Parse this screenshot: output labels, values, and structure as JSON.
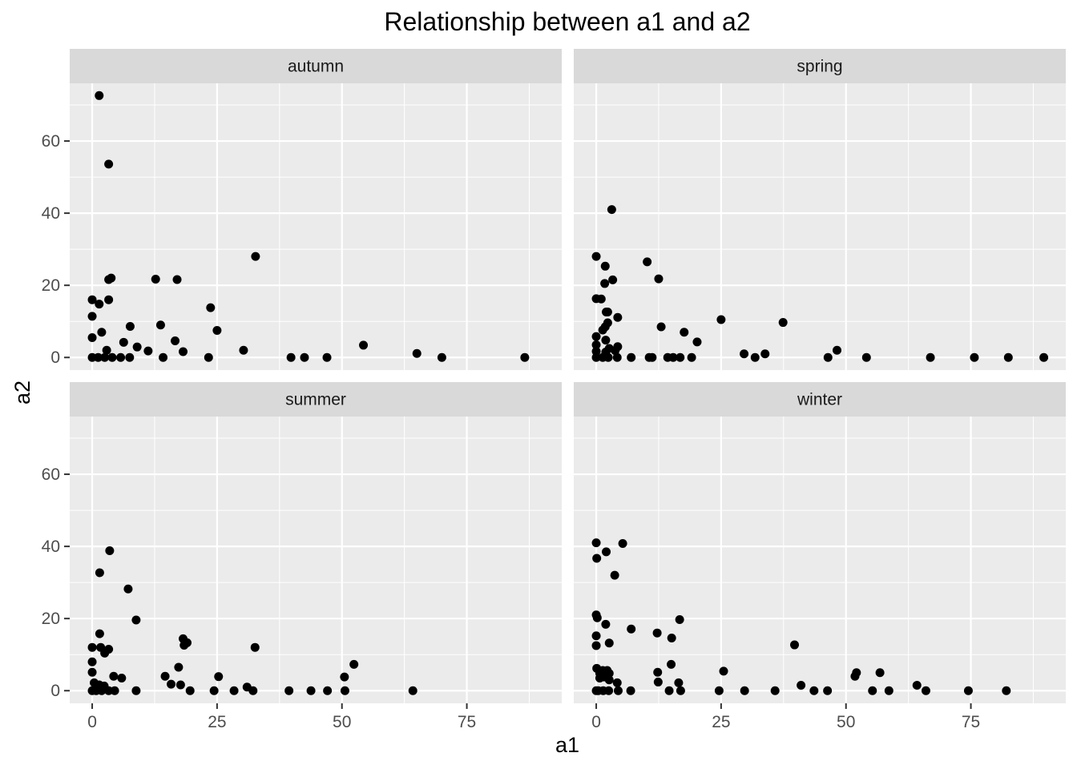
{
  "chart_data": {
    "type": "scatter",
    "title": "Relationship between a1 and a2",
    "xlabel": "a1",
    "ylabel": "a2",
    "xlim": [
      -4.5,
      94
    ],
    "ylim": [
      -3.5,
      76
    ],
    "x_ticks": [
      0,
      25,
      50,
      75
    ],
    "y_ticks": [
      0,
      20,
      40,
      60
    ],
    "grid": true,
    "facets": [
      {
        "label": "autumn",
        "points": [
          [
            1.4,
            72.6
          ],
          [
            3.3,
            53.6
          ],
          [
            32.7,
            28
          ],
          [
            3.3,
            21.6
          ],
          [
            3.8,
            22
          ],
          [
            12.7,
            21.7
          ],
          [
            17,
            21.6
          ],
          [
            0,
            16
          ],
          [
            3.3,
            16
          ],
          [
            1.4,
            14.8
          ],
          [
            23.7,
            13.8
          ],
          [
            0,
            11.4
          ],
          [
            13.7,
            9
          ],
          [
            7.6,
            8.6
          ],
          [
            25,
            7.5
          ],
          [
            1.9,
            7
          ],
          [
            0,
            5.5
          ],
          [
            16.6,
            4.6
          ],
          [
            6.3,
            4.2
          ],
          [
            54.3,
            3.4
          ],
          [
            9,
            2.9
          ],
          [
            2.9,
            2
          ],
          [
            11.2,
            1.8
          ],
          [
            30.3,
            2
          ],
          [
            18.2,
            1.6
          ],
          [
            65,
            1.1
          ],
          [
            0,
            0
          ],
          [
            1.2,
            0
          ],
          [
            2.5,
            0
          ],
          [
            4,
            0
          ],
          [
            5.7,
            0
          ],
          [
            7.5,
            0
          ],
          [
            14.2,
            0
          ],
          [
            23.3,
            0
          ],
          [
            39.8,
            0
          ],
          [
            42.5,
            0
          ],
          [
            47,
            0
          ],
          [
            70,
            0
          ],
          [
            86.6,
            0
          ]
        ]
      },
      {
        "label": "spring",
        "points": [
          [
            3.1,
            41
          ],
          [
            0,
            28
          ],
          [
            10.2,
            26.5
          ],
          [
            1.8,
            25.3
          ],
          [
            3.3,
            21.5
          ],
          [
            12.5,
            21.8
          ],
          [
            1.7,
            20.5
          ],
          [
            0,
            16.3
          ],
          [
            1,
            16.2
          ],
          [
            2,
            12.6
          ],
          [
            2.3,
            12.6
          ],
          [
            4.3,
            11.1
          ],
          [
            25,
            10.5
          ],
          [
            37.4,
            9.7
          ],
          [
            2.3,
            9.6
          ],
          [
            1.8,
            8.5
          ],
          [
            13,
            8.5
          ],
          [
            1.3,
            7.6
          ],
          [
            17.6,
            7
          ],
          [
            0,
            5.8
          ],
          [
            1.9,
            4.8
          ],
          [
            20.2,
            4.3
          ],
          [
            0,
            3.5
          ],
          [
            4.3,
            3
          ],
          [
            2.6,
            2.5
          ],
          [
            0,
            1.7
          ],
          [
            1.9,
            1.5
          ],
          [
            3.8,
            1.9
          ],
          [
            48.2,
            2
          ],
          [
            29.6,
            1
          ],
          [
            33.8,
            1
          ],
          [
            0,
            0
          ],
          [
            1.3,
            0
          ],
          [
            2.4,
            0
          ],
          [
            4.2,
            0
          ],
          [
            7,
            0
          ],
          [
            10.6,
            0
          ],
          [
            11.2,
            0
          ],
          [
            14.3,
            0
          ],
          [
            15.4,
            0
          ],
          [
            16.8,
            0
          ],
          [
            19.1,
            0
          ],
          [
            31.8,
            0
          ],
          [
            46.4,
            0
          ],
          [
            54.1,
            0
          ],
          [
            66.9,
            0
          ],
          [
            75.7,
            0
          ],
          [
            82.5,
            0
          ],
          [
            89.6,
            0
          ]
        ]
      },
      {
        "label": "summer",
        "points": [
          [
            3.5,
            38.8
          ],
          [
            1.5,
            32.7
          ],
          [
            7.2,
            28.2
          ],
          [
            8.8,
            19.6
          ],
          [
            1.5,
            15.8
          ],
          [
            18.2,
            14.4
          ],
          [
            18.4,
            12.6
          ],
          [
            19,
            13.3
          ],
          [
            0,
            12
          ],
          [
            1.7,
            12
          ],
          [
            3.3,
            11.5
          ],
          [
            32.6,
            12
          ],
          [
            2.5,
            10.4
          ],
          [
            0,
            8
          ],
          [
            52.4,
            7.3
          ],
          [
            17.3,
            6.5
          ],
          [
            0,
            5.1
          ],
          [
            14.6,
            4
          ],
          [
            25.3,
            3.9
          ],
          [
            4.3,
            4
          ],
          [
            5.9,
            3.5
          ],
          [
            50.5,
            3.8
          ],
          [
            15.8,
            1.8
          ],
          [
            0.4,
            2.2
          ],
          [
            1.4,
            1.6
          ],
          [
            2.4,
            1.3
          ],
          [
            17.7,
            1.6
          ],
          [
            31,
            1
          ],
          [
            0,
            0
          ],
          [
            0.8,
            0
          ],
          [
            1.9,
            0
          ],
          [
            3.3,
            0
          ],
          [
            4.5,
            0
          ],
          [
            8.8,
            0
          ],
          [
            19.6,
            0
          ],
          [
            24.4,
            0
          ],
          [
            28.4,
            0
          ],
          [
            32.2,
            0
          ],
          [
            39.4,
            0
          ],
          [
            43.8,
            0
          ],
          [
            47.1,
            0
          ],
          [
            50.6,
            0
          ],
          [
            64.2,
            0
          ]
        ]
      },
      {
        "label": "winter",
        "points": [
          [
            0,
            41
          ],
          [
            5.3,
            40.8
          ],
          [
            2,
            38.5
          ],
          [
            0.1,
            36.7
          ],
          [
            3.7,
            32
          ],
          [
            0,
            21
          ],
          [
            0.2,
            20.2
          ],
          [
            16.7,
            19.7
          ],
          [
            1.9,
            18.4
          ],
          [
            7,
            17.1
          ],
          [
            12.2,
            16
          ],
          [
            15.1,
            14.6
          ],
          [
            0,
            15.2
          ],
          [
            2.6,
            13.2
          ],
          [
            39.7,
            12.7
          ],
          [
            0,
            12.5
          ],
          [
            15,
            7.3
          ],
          [
            0.1,
            6.2
          ],
          [
            1.3,
            5.6
          ],
          [
            2.2,
            5.6
          ],
          [
            25.5,
            5.4
          ],
          [
            52.1,
            5
          ],
          [
            56.8,
            5
          ],
          [
            12.3,
            5.1
          ],
          [
            2.6,
            4.8
          ],
          [
            51.8,
            4
          ],
          [
            0.7,
            4.8
          ],
          [
            1.5,
            3.8
          ],
          [
            0.7,
            3.5
          ],
          [
            2.6,
            3
          ],
          [
            4.2,
            2.2
          ],
          [
            12.4,
            2.4
          ],
          [
            16.5,
            2.2
          ],
          [
            41,
            1.5
          ],
          [
            64.2,
            1.5
          ],
          [
            0,
            0
          ],
          [
            0.4,
            0
          ],
          [
            1.4,
            0
          ],
          [
            2.5,
            0
          ],
          [
            4.4,
            0
          ],
          [
            6.9,
            0
          ],
          [
            14.6,
            0
          ],
          [
            16.9,
            0
          ],
          [
            24.6,
            0
          ],
          [
            29.7,
            0
          ],
          [
            35.8,
            0
          ],
          [
            43.6,
            0
          ],
          [
            46.3,
            0
          ],
          [
            55.3,
            0
          ],
          [
            58.6,
            0
          ],
          [
            66,
            0
          ],
          [
            74.5,
            0
          ],
          [
            82.1,
            0
          ]
        ]
      }
    ]
  }
}
